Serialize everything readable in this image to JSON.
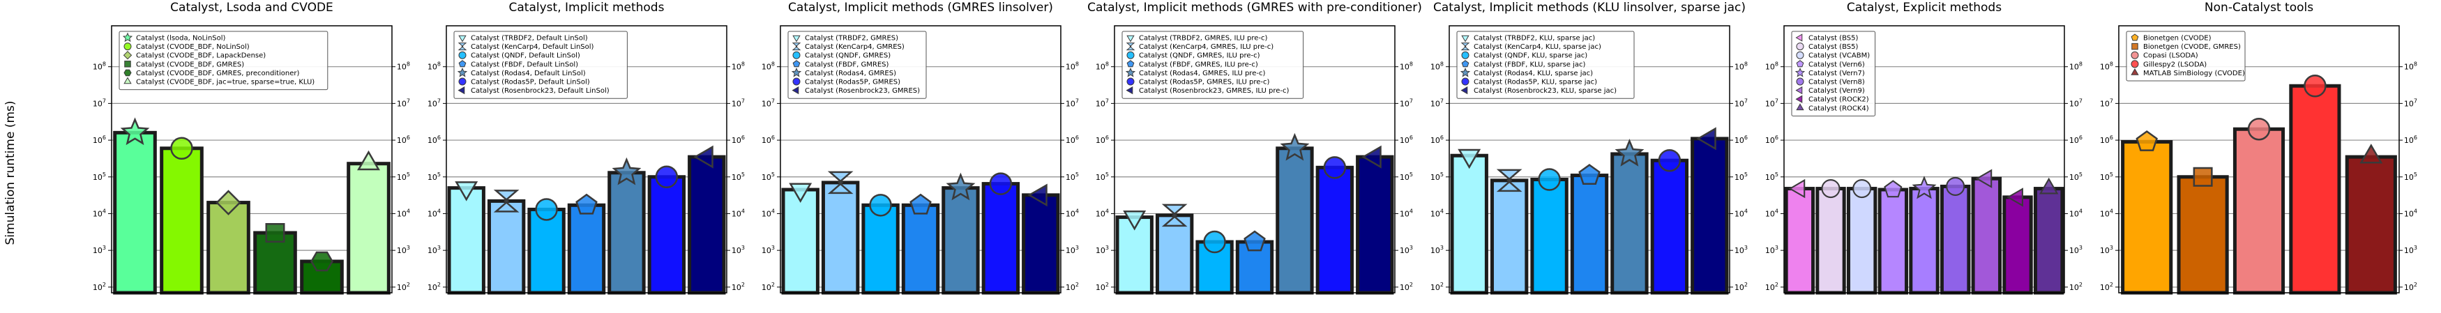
{
  "figure": {
    "ylabel": "Simulation runtime (ms)",
    "yscale": "log",
    "ylim": [
      70,
      1300000000
    ],
    "yticks": [
      {
        "value": 100,
        "base": "10",
        "exp": "2"
      },
      {
        "value": 1000,
        "base": "10",
        "exp": "3"
      },
      {
        "value": 10000,
        "base": "10",
        "exp": "4"
      },
      {
        "value": 100000,
        "base": "10",
        "exp": "5"
      },
      {
        "value": 1000000,
        "base": "10",
        "exp": "6"
      },
      {
        "value": 10000000,
        "base": "10",
        "exp": "7"
      },
      {
        "value": 100000000,
        "base": "10",
        "exp": "8"
      }
    ],
    "grid": "horizontal"
  },
  "chart_data": [
    {
      "type": "bar",
      "title": "Catalyst, Lsoda and CVODE",
      "legend": "top-left",
      "series": [
        {
          "name": "Catalyst (lsoda, NoLinSol)",
          "value": 1600000,
          "color": "#59ff9a",
          "marker": "star"
        },
        {
          "name": "Catalyst (CVODE_BDF, NoLinSol)",
          "value": 600000,
          "color": "#84f800",
          "marker": "circle"
        },
        {
          "name": "Catalyst (CVODE_BDF, LapackDense)",
          "value": 20000,
          "color": "#a4cd5a",
          "marker": "diamond"
        },
        {
          "name": "Catalyst (CVODE_BDF, GMRES)",
          "value": 3000,
          "color": "#156b12",
          "marker": "square"
        },
        {
          "name": "Catalyst (CVODE_BDF, GMRES, preconditioner)",
          "value": 500,
          "color": "#0b6a03",
          "marker": "hexagon"
        },
        {
          "name": "Catalyst (CVODE_BDF, jac=true, sparse=true, KLU)",
          "value": 230000,
          "color": "#c2ffbc",
          "marker": "triangle-up"
        }
      ]
    },
    {
      "type": "bar",
      "title": "Catalyst, Implicit methods",
      "legend": "top-left",
      "series": [
        {
          "name": "Catalyst (TRBDF2, Default LinSol)",
          "value": 50000,
          "color": "#a4f7ff",
          "marker": "triangle-down"
        },
        {
          "name": "Catalyst (KenCarp4, Default LinSol)",
          "value": 22000,
          "color": "#8accff",
          "marker": "hourglass"
        },
        {
          "name": "Catalyst (QNDF, Default LinSol)",
          "value": 13000,
          "color": "#00b4ff",
          "marker": "circle"
        },
        {
          "name": "Catalyst (FBDF, Default LinSol)",
          "value": 17000,
          "color": "#1e85f0",
          "marker": "pentagon"
        },
        {
          "name": "Catalyst (Rodas4, Default LinSol)",
          "value": 130000,
          "color": "#4682b4",
          "marker": "star"
        },
        {
          "name": "Catalyst (Rodas5P, Default LinSol)",
          "value": 100000,
          "color": "#1010ff",
          "marker": "circle"
        },
        {
          "name": "Catalyst (Rosenbrock23, Default LinSol)",
          "value": 350000,
          "color": "#00007d",
          "marker": "triangle-left"
        }
      ]
    },
    {
      "type": "bar",
      "title": "Catalyst, Implicit methods (GMRES linsolver)",
      "legend": "top-left",
      "series": [
        {
          "name": "Catalyst (TRBDF2, GMRES)",
          "value": 45000,
          "color": "#a4f7ff",
          "marker": "triangle-down"
        },
        {
          "name": "Catalyst (KenCarp4, GMRES)",
          "value": 70000,
          "color": "#8accff",
          "marker": "hourglass"
        },
        {
          "name": "Catalyst (QNDF, GMRES)",
          "value": 17000,
          "color": "#00b4ff",
          "marker": "circle"
        },
        {
          "name": "Catalyst (FBDF, GMRES)",
          "value": 17000,
          "color": "#1e85f0",
          "marker": "pentagon"
        },
        {
          "name": "Catalyst (Rodas4, GMRES)",
          "value": 50000,
          "color": "#4682b4",
          "marker": "star"
        },
        {
          "name": "Catalyst (Rodas5P, GMRES)",
          "value": 65000,
          "color": "#1010ff",
          "marker": "circle"
        },
        {
          "name": "Catalyst (Rosenbrock23, GMRES)",
          "value": 32000,
          "color": "#00007d",
          "marker": "triangle-left"
        }
      ]
    },
    {
      "type": "bar",
      "title": "Catalyst, Implicit methods (GMRES with pre-conditioner)",
      "legend": "top-left",
      "series": [
        {
          "name": "Catalyst (TRBDF2, GMRES, ILU pre-c)",
          "value": 8000,
          "color": "#a4f7ff",
          "marker": "triangle-down"
        },
        {
          "name": "Catalyst (KenCarp4, GMRES, ILU pre-c)",
          "value": 9000,
          "color": "#8accff",
          "marker": "hourglass"
        },
        {
          "name": "Catalyst (QNDF, GMRES, ILU pre-c)",
          "value": 1700,
          "color": "#00b4ff",
          "marker": "circle"
        },
        {
          "name": "Catalyst (FBDF, GMRES, ILU pre-c)",
          "value": 1700,
          "color": "#1e85f0",
          "marker": "pentagon"
        },
        {
          "name": "Catalyst (Rodas4, GMRES, ILU pre-c)",
          "value": 600000,
          "color": "#4682b4",
          "marker": "star"
        },
        {
          "name": "Catalyst (Rodas5P, GMRES, ILU pre-c)",
          "value": 180000,
          "color": "#1010ff",
          "marker": "circle"
        },
        {
          "name": "Catalyst (Rosenbrock23, GMRES, ILU pre-c)",
          "value": 350000,
          "color": "#00007d",
          "marker": "triangle-left"
        }
      ]
    },
    {
      "type": "bar",
      "title": "Catalyst, Implicit methods (KLU linsolver, sparse jac)",
      "legend": "top-left",
      "series": [
        {
          "name": "Catalyst (TRBDF2, KLU, sparse jac)",
          "value": 380000,
          "color": "#a4f7ff",
          "marker": "triangle-down"
        },
        {
          "name": "Catalyst (KenCarp4, KLU, sparse jac)",
          "value": 80000,
          "color": "#8accff",
          "marker": "hourglass"
        },
        {
          "name": "Catalyst (QNDF, KLU, sparse jac)",
          "value": 85000,
          "color": "#00b4ff",
          "marker": "circle"
        },
        {
          "name": "Catalyst (FBDF, KLU, sparse jac)",
          "value": 110000,
          "color": "#1e85f0",
          "marker": "pentagon"
        },
        {
          "name": "Catalyst (Rodas4, KLU, sparse jac)",
          "value": 420000,
          "color": "#4682b4",
          "marker": "star"
        },
        {
          "name": "Catalyst (Rodas5P, KLU, sparse jac)",
          "value": 280000,
          "color": "#1010ff",
          "marker": "circle"
        },
        {
          "name": "Catalyst (Rosenbrock23, KLU, sparse jac)",
          "value": 1100000,
          "color": "#00007d",
          "marker": "triangle-left"
        }
      ]
    },
    {
      "type": "bar",
      "title": "Catalyst, Explicit methods",
      "legend": "top-left",
      "series": [
        {
          "name": "Catalyst (BS5)",
          "value": 48000,
          "color": "#ee82ee",
          "marker": "triangle-left"
        },
        {
          "name": "Catalyst (BS5)",
          "value": 48000,
          "color": "#e6d4f1",
          "marker": "circle"
        },
        {
          "name": "Catalyst (VCABM)",
          "value": 48000,
          "color": "#cfd8ff",
          "marker": "circle"
        },
        {
          "name": "Catalyst (Vern6)",
          "value": 45000,
          "color": "#b586ff",
          "marker": "pentagon"
        },
        {
          "name": "Catalyst (Vern7)",
          "value": 48000,
          "color": "#a77eff",
          "marker": "star"
        },
        {
          "name": "Catalyst (Vern8)",
          "value": 55000,
          "color": "#8f62e8",
          "marker": "circle"
        },
        {
          "name": "Catalyst (Vern9)",
          "value": 90000,
          "color": "#a258d9",
          "marker": "triangle-left"
        },
        {
          "name": "Catalyst (ROCK2)",
          "value": 28000,
          "color": "#8a00a0",
          "marker": "triangle-left"
        },
        {
          "name": "Catalyst (ROCK4)",
          "value": 48000,
          "color": "#5f3196",
          "marker": "triangle-up"
        }
      ]
    },
    {
      "type": "bar",
      "title": "Non-Catalyst tools",
      "legend": "top-left",
      "series": [
        {
          "name": "Bionetgen (CVODE)",
          "value": 900000,
          "color": "#ffa500",
          "marker": "pentagon"
        },
        {
          "name": "Bionetgen (CVODE, GMRES)",
          "value": 100000,
          "color": "#cc6200",
          "marker": "square"
        },
        {
          "name": "Copasi (LSODA)",
          "value": 2000000,
          "color": "#f08080",
          "marker": "circle"
        },
        {
          "name": "Gillespy2 (LSODA)",
          "value": 30000000,
          "color": "#ff3232",
          "marker": "circle"
        },
        {
          "name": "MATLAB SimBiology (CVODE)",
          "value": 350000,
          "color": "#8b1a1a",
          "marker": "triangle-up"
        }
      ]
    }
  ]
}
